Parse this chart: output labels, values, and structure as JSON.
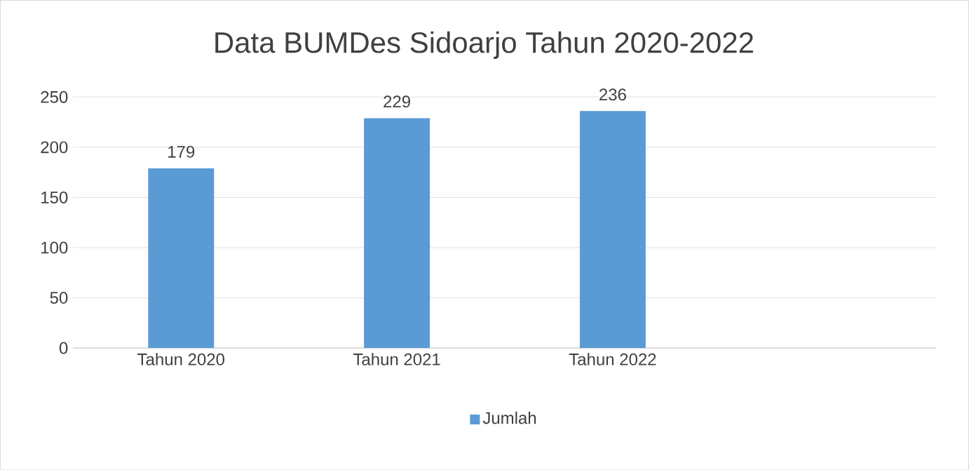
{
  "chart_data": {
    "type": "bar",
    "title": "Data BUMDes Sidoarjo Tahun 2020-2022",
    "categories": [
      "Tahun 2020",
      "Tahun 2021",
      "Tahun 2022",
      null
    ],
    "series": [
      {
        "name": "Jumlah",
        "color": "#5b9bd5",
        "values": [
          179,
          229,
          236,
          null
        ]
      }
    ],
    "ylim": [
      0,
      250
    ],
    "yticks": [
      0,
      50,
      100,
      150,
      200,
      250
    ],
    "grid": "y",
    "legend": "bottom",
    "data_labels": true
  }
}
